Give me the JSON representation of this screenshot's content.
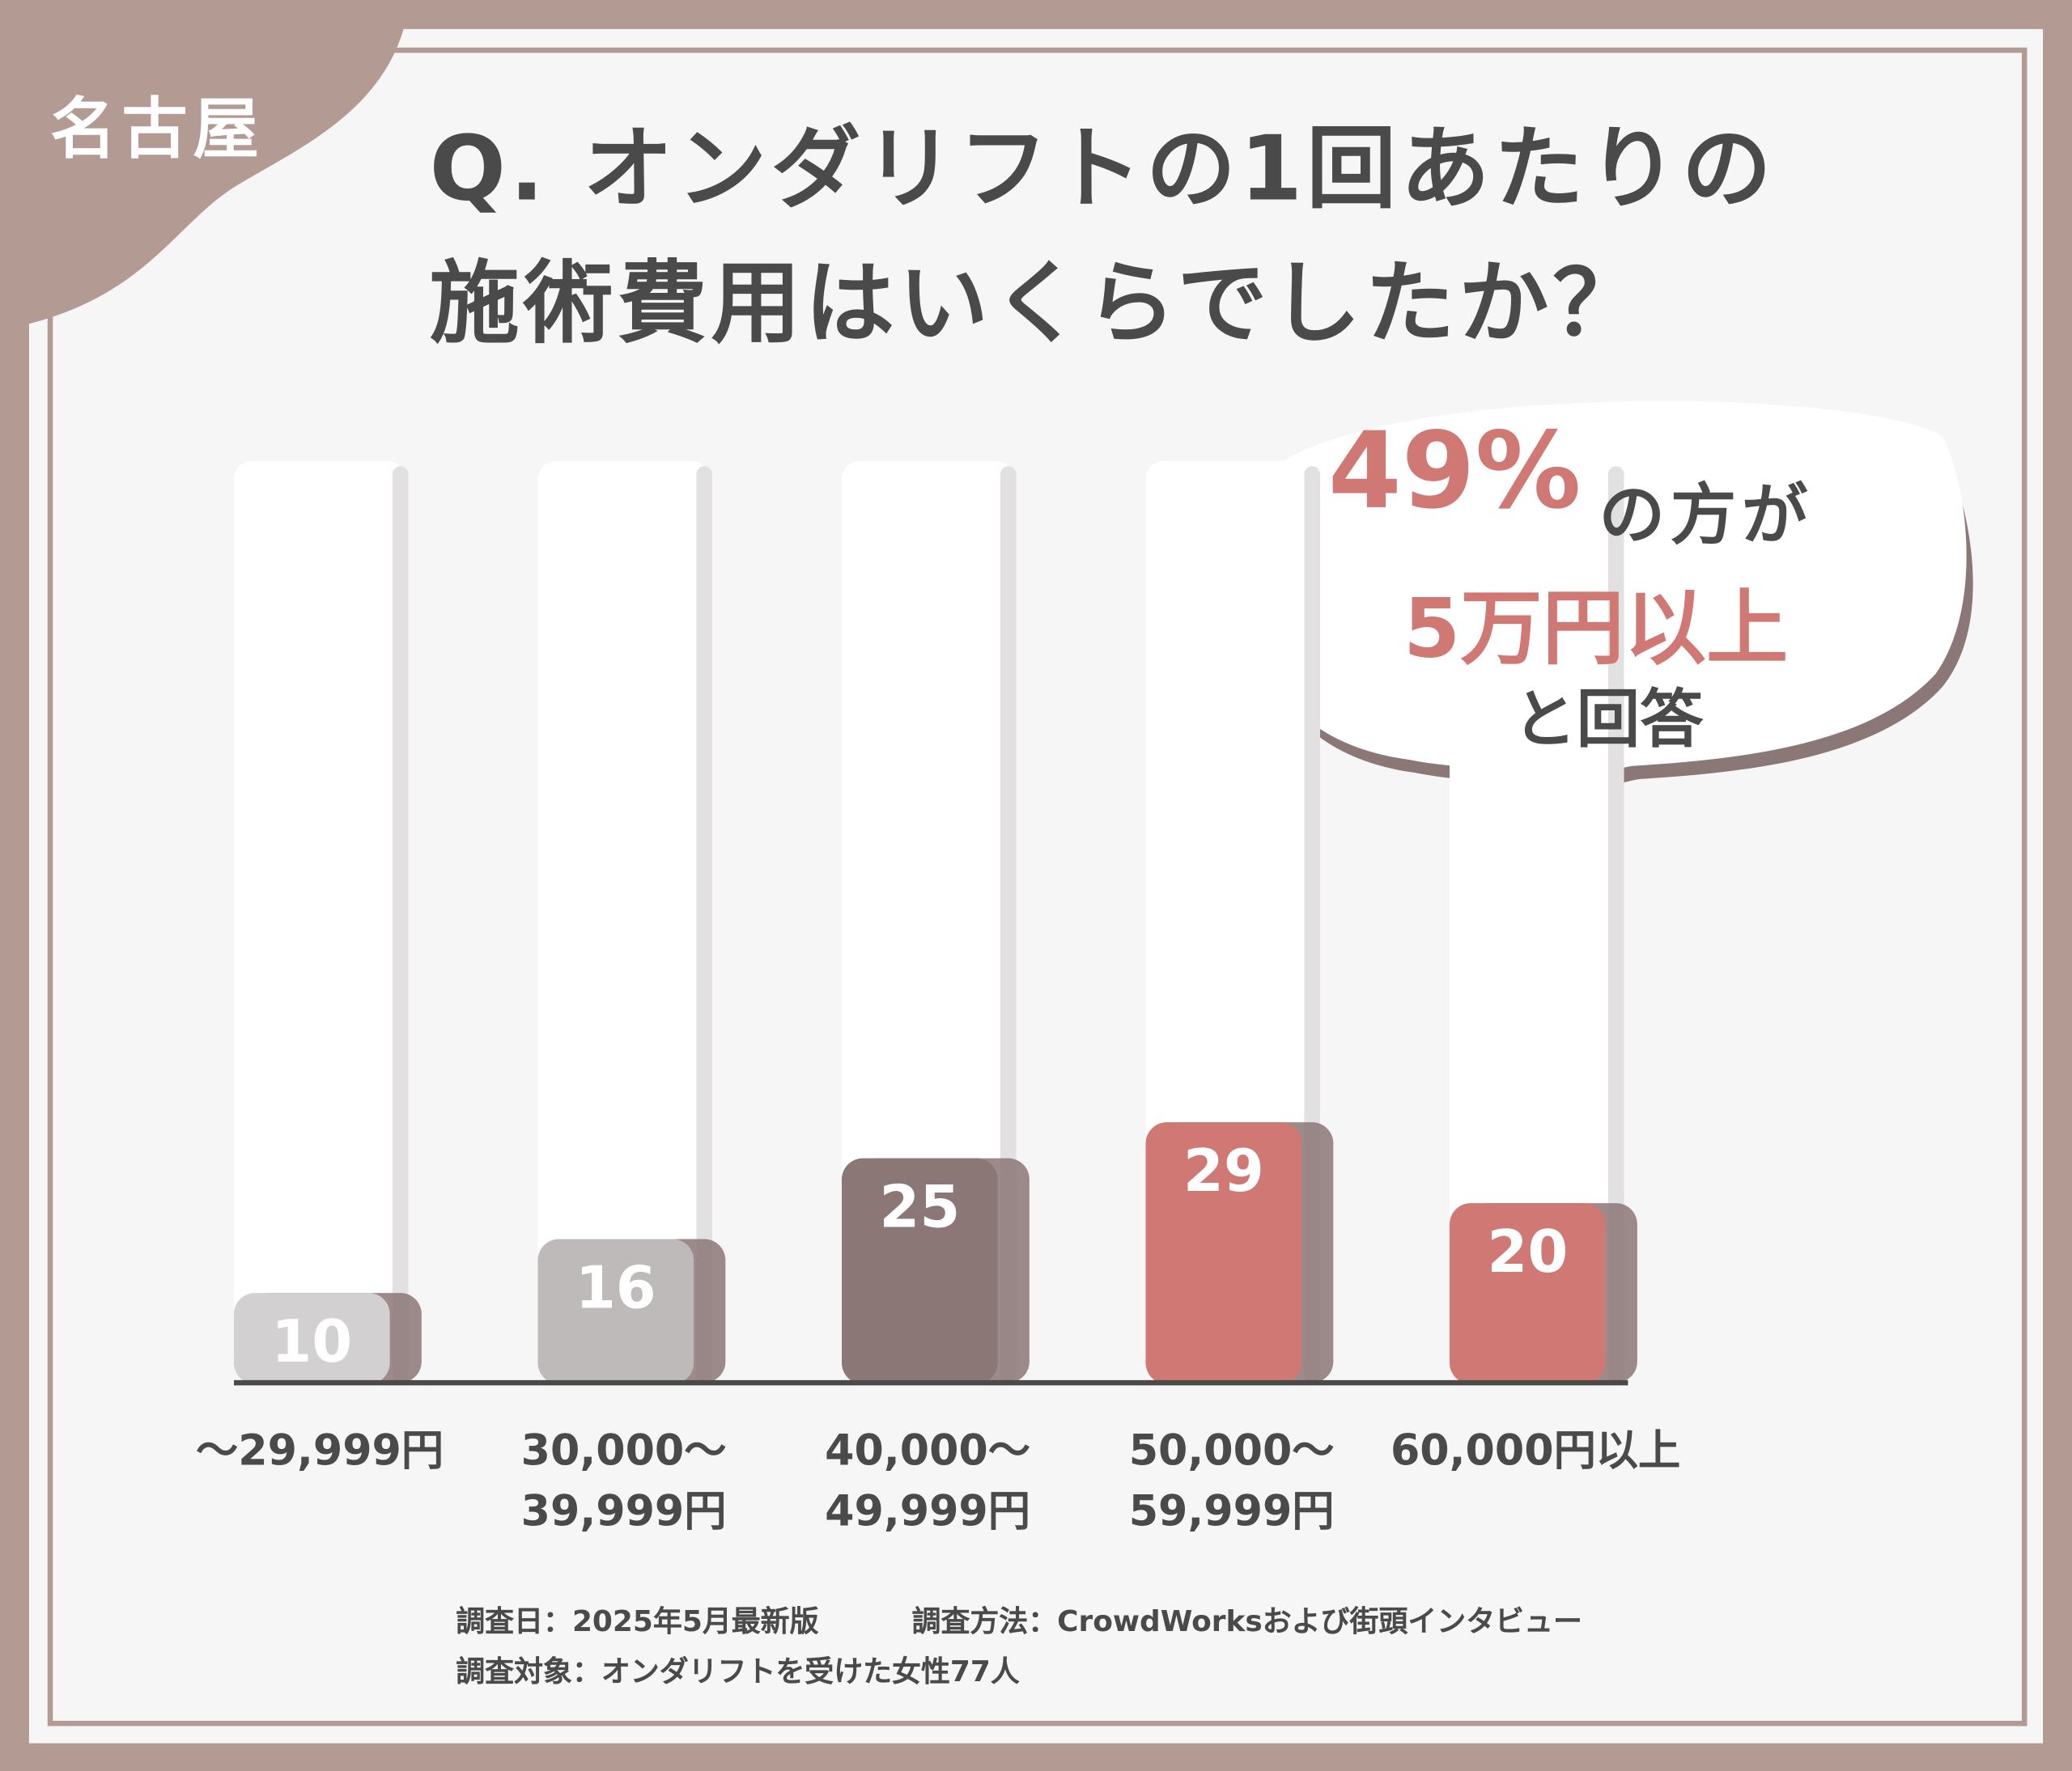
{
  "tag": "名古屋",
  "chart_data": {
    "type": "bar",
    "title": "Q. オンダリフトの1回あたりの\n施術費用はいくらでしたか？",
    "categories": [
      "～29,999円",
      "30,000～\n39,999円",
      "40,000～\n49,999円",
      "50,000～\n59,999円",
      "60,000円以上"
    ],
    "values": [
      10,
      16,
      25,
      29,
      20
    ],
    "colors": [
      "#d2d0d0",
      "#bebaba",
      "#8c7777",
      "#d07874",
      "#d07874"
    ],
    "ylim": [
      0,
      100
    ]
  },
  "callout": {
    "number": "49%",
    "line1": "の方が",
    "line2": "5万円以上",
    "line3": "と回答"
  },
  "footnotes": [
    "調査日：2025年5月最新版",
    "調査方法：CrowdWorksおよび街頭インタビュー",
    "調査対象：オンダリフトを受けた女性77人"
  ]
}
